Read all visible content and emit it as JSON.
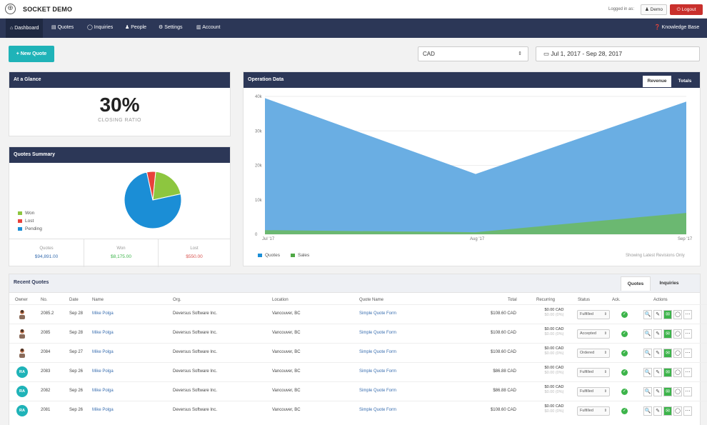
{
  "app": {
    "title": "SOCKET DEMO",
    "logged_in_label": "Logged in as:",
    "user": "Demo",
    "logout": "Logout",
    "logo_glyph": "⊕"
  },
  "nav": {
    "items": [
      {
        "icon": "⌂",
        "label": "Dashboard",
        "active": true
      },
      {
        "icon": "▤",
        "label": "Quotes"
      },
      {
        "icon": "◯",
        "label": "Inquiries"
      },
      {
        "icon": "♟",
        "label": "People"
      },
      {
        "icon": "⚙",
        "label": "Settings"
      },
      {
        "icon": "▥",
        "label": "Account"
      }
    ],
    "knowledge_base": "Knowledge Base"
  },
  "toolbar": {
    "new_quote": "+ New Quote",
    "currency": "CAD",
    "date_range": "Jul 1, 2017 - Sep 28, 2017"
  },
  "glance": {
    "title": "At a Glance",
    "value": "30%",
    "label": "CLOSING RATIO"
  },
  "summary": {
    "title": "Quotes Summary",
    "legend": [
      {
        "label": "Won",
        "color": "#8dc63f"
      },
      {
        "label": "Lost",
        "color": "#e8413b"
      },
      {
        "label": "Pending",
        "color": "#1b8ed6"
      }
    ],
    "pie": {
      "won": 0.2,
      "lost": 0.05,
      "pending": 0.75
    },
    "cells": [
      {
        "label": "Quotes",
        "value": "$94,891.00",
        "color": "#3a6fb0"
      },
      {
        "label": "Won",
        "value": "$8,175.00",
        "color": "#3cb44a"
      },
      {
        "label": "Lost",
        "value": "$550.00",
        "color": "#d9534f"
      }
    ]
  },
  "operation": {
    "title": "Operation Data",
    "tabs": [
      "Revenue",
      "Totals"
    ],
    "footer_note": "Showing Latest Revisions Only",
    "legend": [
      {
        "label": "Quotes",
        "color": "#1b8ed6"
      },
      {
        "label": "Sales",
        "color": "#4fa845"
      }
    ]
  },
  "chart_data": {
    "type": "area",
    "x": [
      "Jul '17",
      "Aug '17",
      "Sep '17"
    ],
    "yticks": [
      "40k",
      "30k",
      "20k",
      "10k",
      "0"
    ],
    "ylim": [
      0,
      40000
    ],
    "series": [
      {
        "name": "Quotes",
        "values": [
          39500,
          17500,
          38500
        ],
        "color": "#6aaee3"
      },
      {
        "name": "Sales",
        "values": [
          1200,
          600,
          6200
        ],
        "color": "#6cb86a"
      }
    ]
  },
  "recent": {
    "title": "Recent Quotes",
    "tabs": [
      "Quotes",
      "Inquiries"
    ],
    "columns": [
      "Owner",
      "No.",
      "Date",
      "Name",
      "Org.",
      "Location",
      "Quote Name",
      "Total",
      "Recurring",
      "Status",
      "Ack.",
      "Actions"
    ],
    "rows": [
      {
        "avatar": "photo",
        "no": "2085.2",
        "date": "Sep 28",
        "name": "Mike Polga",
        "org": "Deversus Software Inc.",
        "location": "Vancouver, BC",
        "quote": "Simple Quote Form",
        "total": "$108.60 CAD",
        "rec1": "$0.00 CAD",
        "rec2": "$0.00 (0%)",
        "status": "Fulfilled"
      },
      {
        "avatar": "photo",
        "no": "2085",
        "date": "Sep 28",
        "name": "Mike Polga",
        "org": "Deversus Software Inc.",
        "location": "Vancouver, BC",
        "quote": "Simple Quote Form",
        "total": "$108.60 CAD",
        "rec1": "$0.00 CAD",
        "rec2": "$0.00 (0%)",
        "status": "Accepted"
      },
      {
        "avatar": "photo",
        "no": "2084",
        "date": "Sep 27",
        "name": "Mike Polga",
        "org": "Deversus Software Inc.",
        "location": "Vancouver, BC",
        "quote": "Simple Quote Form",
        "total": "$108.60 CAD",
        "rec1": "$0.00 CAD",
        "rec2": "$0.00 (0%)",
        "status": "Ordered"
      },
      {
        "avatar": "RA",
        "no": "2083",
        "date": "Sep 26",
        "name": "Mike Polga",
        "org": "Deversus Software Inc.",
        "location": "Vancouver, BC",
        "quote": "Simple Quote Form",
        "total": "$86.88 CAD",
        "rec1": "$0.00 CAD",
        "rec2": "$0.00 (0%)",
        "status": "Fulfilled"
      },
      {
        "avatar": "RA",
        "no": "2082",
        "date": "Sep 26",
        "name": "Mike Polga",
        "org": "Deversus Software Inc.",
        "location": "Vancouver, BC",
        "quote": "Simple Quote Form",
        "total": "$86.88 CAD",
        "rec1": "$0.00 CAD",
        "rec2": "$0.00 (0%)",
        "status": "Fulfilled"
      },
      {
        "avatar": "RA",
        "no": "2081",
        "date": "Sep 26",
        "name": "Mike Polga",
        "org": "Deversus Software Inc.",
        "location": "Vancouver, BC",
        "quote": "Simple Quote Form",
        "total": "$108.60 CAD",
        "rec1": "$0.00 CAD",
        "rec2": "$0.00 (0%)",
        "status": "Fulfilled"
      }
    ],
    "action_icons": [
      "magnifier-icon",
      "pencil-icon",
      "email-icon",
      "comment-icon",
      "more-icon"
    ]
  }
}
